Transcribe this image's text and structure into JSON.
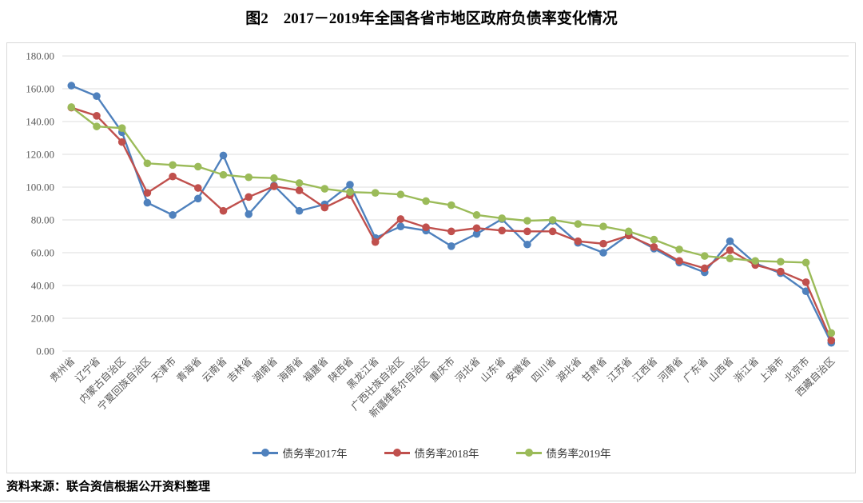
{
  "page": {
    "title": "图2　2017－2019年全国各省市地区政府负债率变化情况",
    "source": "资料来源：联合资信根据公开资料整理"
  },
  "chart_data": {
    "type": "line",
    "title": "图2　2017－2019年全国各省市地区政府负债率变化情况",
    "xlabel": "",
    "ylabel": "",
    "ylim": [
      0,
      180
    ],
    "ytick_step": 20,
    "ytick_labels": [
      "0.00",
      "20.00",
      "40.00",
      "60.00",
      "80.00",
      "100.00",
      "120.00",
      "140.00",
      "160.00",
      "180.00"
    ],
    "grid": "horizontal",
    "legend_position": "bottom",
    "categories": [
      "贵州省",
      "辽宁省",
      "内蒙古自治区",
      "宁夏回族自治区",
      "天津市",
      "青海省",
      "云南省",
      "吉林省",
      "湖南省",
      "海南省",
      "福建省",
      "陕西省",
      "黑龙江省",
      "广西壮族自治区",
      "新疆维吾尔自治区",
      "重庆市",
      "河北省",
      "山东省",
      "安徽省",
      "四川省",
      "湖北省",
      "甘肃省",
      "江苏省",
      "江西省",
      "河南省",
      "广东省",
      "山西省",
      "浙江省",
      "上海市",
      "北京市",
      "西藏自治区"
    ],
    "series": [
      {
        "name": "债务率2017年",
        "color": "#4F81BD",
        "values": [
          161.9,
          155.5,
          133.5,
          90.5,
          83.0,
          93.0,
          119.3,
          83.5,
          101.0,
          85.5,
          89.5,
          101.5,
          69.0,
          76.0,
          73.5,
          64.0,
          71.5,
          80.5,
          65.0,
          79.5,
          66.0,
          60.0,
          71.0,
          62.5,
          54.0,
          48.0,
          67.0,
          53.5,
          47.5,
          36.5,
          5.0
        ]
      },
      {
        "name": "债务率2018年",
        "color": "#C0504D",
        "values": [
          148.5,
          143.5,
          127.5,
          96.5,
          106.5,
          99.5,
          85.5,
          94.0,
          100.5,
          98.0,
          87.5,
          95.0,
          66.5,
          80.5,
          75.5,
          73.0,
          75.0,
          73.5,
          73.0,
          73.0,
          67.0,
          65.5,
          70.5,
          63.5,
          55.0,
          50.5,
          61.5,
          52.5,
          48.5,
          42.0,
          6.5
        ]
      },
      {
        "name": "债务率2019年",
        "color": "#9BBB59",
        "values": [
          148.8,
          137.0,
          136.0,
          114.5,
          113.5,
          112.5,
          107.5,
          106.0,
          105.5,
          102.5,
          99.0,
          97.0,
          96.5,
          95.5,
          91.5,
          89.0,
          83.0,
          81.0,
          79.5,
          80.0,
          77.5,
          76.0,
          73.0,
          68.0,
          62.0,
          58.0,
          56.5,
          55.0,
          54.5,
          54.0,
          11.0
        ]
      }
    ]
  },
  "style": {
    "grid_color": "#dcdcdc",
    "tick_label_color": "#595959",
    "chart_border_color": "#d9d9d9"
  }
}
